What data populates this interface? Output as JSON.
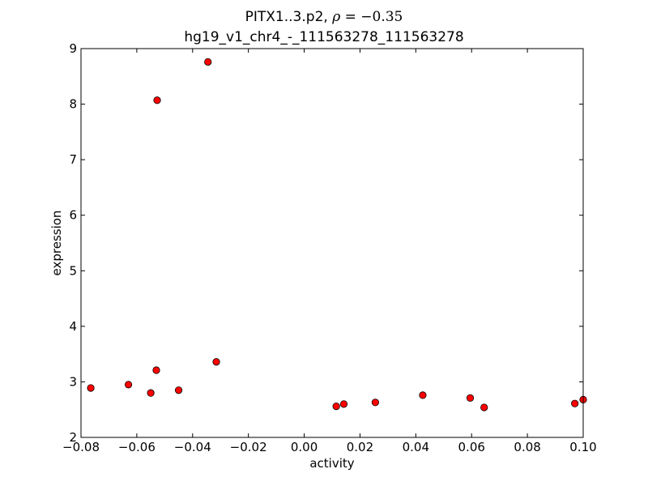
{
  "chart_data": {
    "type": "scatter",
    "title_prefix": "PITX1..3.p2, ",
    "title_rho_symbol": "ρ",
    "title_rho_value": " = −0.35",
    "subtitle": "hg19_v1_chr4_-_111563278_111563278",
    "xlabel": "activity",
    "ylabel": "expression",
    "xlim": [
      -0.08,
      0.1
    ],
    "ylim": [
      2,
      9
    ],
    "xticks": [
      -0.08,
      -0.06,
      -0.04,
      -0.02,
      0.0,
      0.02,
      0.04,
      0.06,
      0.08,
      0.1
    ],
    "xtick_labels": [
      "−0.08",
      "−0.06",
      "−0.04",
      "−0.02",
      "0.00",
      "0.02",
      "0.04",
      "0.06",
      "0.08",
      "0.10"
    ],
    "yticks": [
      2,
      3,
      4,
      5,
      6,
      7,
      8,
      9
    ],
    "ytick_labels": [
      "2",
      "3",
      "4",
      "5",
      "6",
      "7",
      "8",
      "9"
    ],
    "grid": false,
    "marker_color": "#ff0000",
    "marker_edge_color": "#000000",
    "points": [
      {
        "x": -0.0765,
        "y": 2.89
      },
      {
        "x": -0.063,
        "y": 2.95
      },
      {
        "x": -0.055,
        "y": 2.8
      },
      {
        "x": -0.053,
        "y": 3.21
      },
      {
        "x": -0.0527,
        "y": 8.07
      },
      {
        "x": -0.045,
        "y": 2.85
      },
      {
        "x": -0.0345,
        "y": 8.76
      },
      {
        "x": -0.0315,
        "y": 3.36
      },
      {
        "x": 0.0115,
        "y": 2.56
      },
      {
        "x": 0.0142,
        "y": 2.6
      },
      {
        "x": 0.0255,
        "y": 2.63
      },
      {
        "x": 0.0425,
        "y": 2.76
      },
      {
        "x": 0.0595,
        "y": 2.71
      },
      {
        "x": 0.0645,
        "y": 2.54
      },
      {
        "x": 0.097,
        "y": 2.61
      },
      {
        "x": 0.1,
        "y": 2.68
      }
    ]
  }
}
